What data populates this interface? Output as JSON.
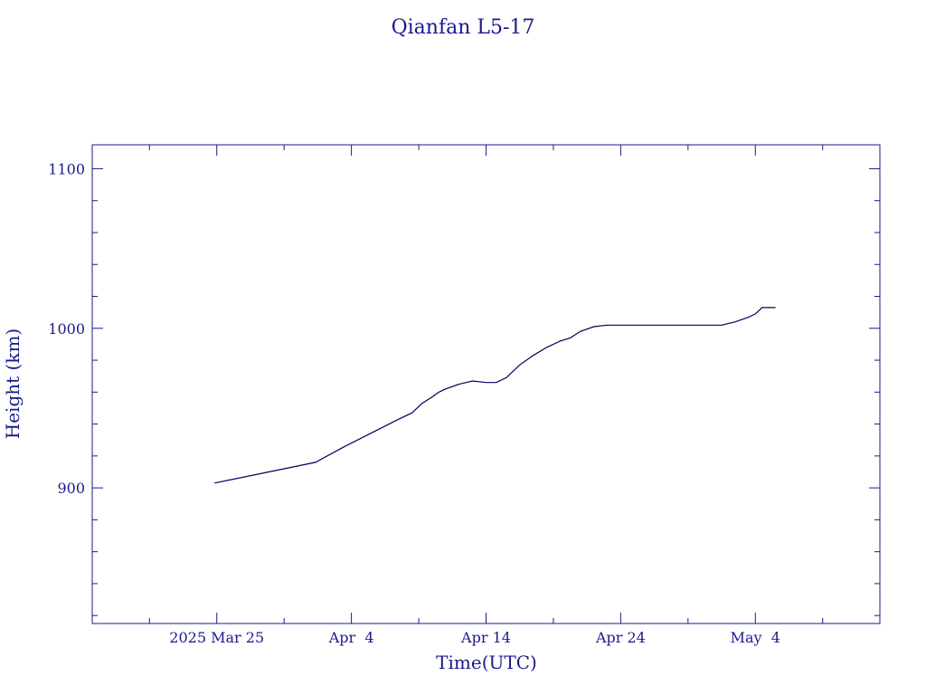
{
  "chart_data": {
    "type": "line",
    "title": "Qianfan L5-17",
    "xlabel": "Time(UTC)",
    "ylabel": "Height (km)",
    "ylim": [
      815,
      1115
    ],
    "xlim": [
      "2025-03-15T18:00",
      "2025-05-13T06:00"
    ],
    "grid": false,
    "line_color": "#00005a",
    "axis_color": "#1a1a8c",
    "x_ticks": [
      {
        "date": "2025-03-25",
        "label": "2025 Mar 25"
      },
      {
        "date": "2025-04-04",
        "label": "Apr  4"
      },
      {
        "date": "2025-04-14",
        "label": "Apr 14"
      },
      {
        "date": "2025-04-24",
        "label": "Apr 24"
      },
      {
        "date": "2025-05-04",
        "label": "May  4"
      }
    ],
    "x_minor_ticks": [
      "2025-03-20",
      "2025-03-30",
      "2025-04-09",
      "2025-04-19",
      "2025-04-29",
      "2025-05-09"
    ],
    "y_ticks": [
      {
        "value": 900,
        "label": "900"
      },
      {
        "value": 1000,
        "label": "1000"
      },
      {
        "value": 1100,
        "label": "1100"
      }
    ],
    "y_minor_step": 20,
    "series": [
      {
        "x": [
          "2025-03-24T20:00",
          "2025-04-01T08:00",
          "2025-04-03T12:00",
          "2025-04-07T12:00",
          "2025-04-08T12:00",
          "2025-04-09T06:00",
          "2025-04-10T00:00",
          "2025-04-10T12:00",
          "2025-04-11T00:00",
          "2025-04-12T00:00",
          "2025-04-13T00:00",
          "2025-04-14T00:00",
          "2025-04-14T18:00",
          "2025-04-15T12:00",
          "2025-04-16T12:00",
          "2025-04-17T12:00",
          "2025-04-18T12:00",
          "2025-04-19T12:00",
          "2025-04-20T06:00",
          "2025-04-21T00:00",
          "2025-04-22T00:00",
          "2025-04-23T00:00",
          "2025-04-24T00:00",
          "2025-04-26T00:00",
          "2025-04-28T00:00",
          "2025-04-30T00:00",
          "2025-05-01T12:00",
          "2025-05-02T12:00",
          "2025-05-03T12:00",
          "2025-05-04T00:00",
          "2025-05-04T12:00",
          "2025-05-04T18:00",
          "2025-05-05T12:00"
        ],
        "y": [
          903,
          916,
          926,
          943,
          947,
          953,
          957,
          960,
          962,
          965,
          967,
          966,
          966,
          969,
          977,
          983,
          988,
          992,
          994,
          998,
          1001,
          1002,
          1002,
          1002,
          1002,
          1002,
          1002,
          1004,
          1007,
          1009,
          1013,
          1013,
          1013
        ]
      }
    ]
  }
}
